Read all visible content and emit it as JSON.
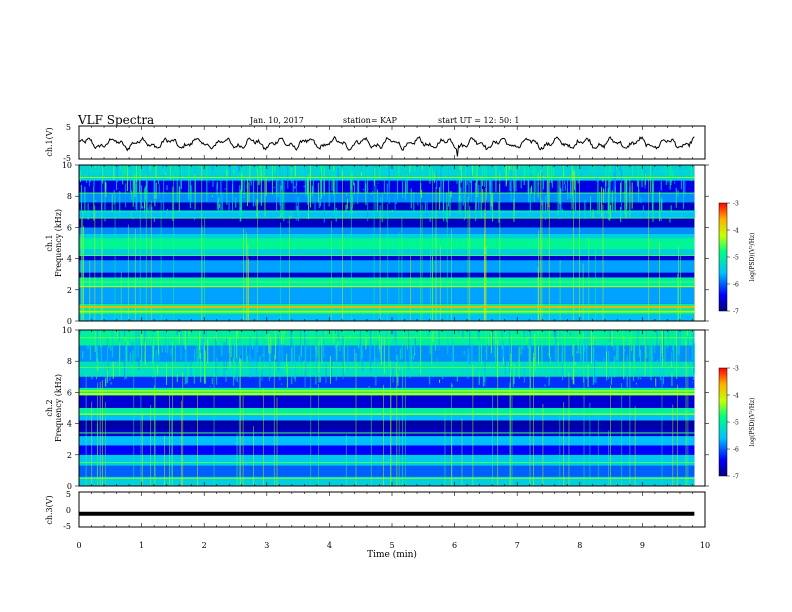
{
  "header": {
    "title": "VLF Spectra",
    "date": "Jan. 10, 2017",
    "station": "station= KAP",
    "start_ut": "start  UT =   12: 50: 1"
  },
  "chart_data": [
    {
      "type": "line",
      "ylabel": "ch.1(V)",
      "ylim": [
        -5,
        5
      ],
      "yticks": [
        "5",
        "-5"
      ],
      "xlim": [
        0,
        10
      ],
      "description_values": "waveform oscillating around -0.3 V with amplitude about 1.5 V"
    },
    {
      "type": "heatmap",
      "ylabel_top": "ch.1",
      "ylabel": "Frequency (kHz)",
      "ylim": [
        0,
        10
      ],
      "yticks": [
        "0",
        "2",
        "4",
        "6",
        "8",
        "10"
      ],
      "xlim": [
        0,
        10
      ],
      "colorbar": {
        "label": "log(PSD)(V²/Hz)",
        "range": [
          -7,
          -3
        ],
        "ticks": [
          "-3",
          "-4",
          "-5",
          "-6",
          "-7"
        ]
      }
    },
    {
      "type": "heatmap",
      "ylabel_top": "ch.2",
      "ylabel": "Frequency (kHz)",
      "ylim": [
        0,
        10
      ],
      "yticks": [
        "0",
        "2",
        "4",
        "6",
        "8",
        "10"
      ],
      "xlim": [
        0,
        10
      ],
      "colorbar": {
        "label": "log(PSD)(V²/Hz)",
        "range": [
          -7,
          -3
        ],
        "ticks": [
          "-3",
          "-4",
          "-5",
          "-6",
          "-7"
        ]
      }
    },
    {
      "type": "line",
      "ylabel": "ch.3(V)",
      "ylim": [
        -5,
        5
      ],
      "yticks": [
        "5",
        "0",
        "-5"
      ],
      "xlim": [
        0,
        10
      ],
      "xlabel": "Time (min)",
      "xticks": [
        "0",
        "1",
        "2",
        "3",
        "4",
        "5",
        "6",
        "7",
        "8",
        "9",
        "10"
      ],
      "constant_value": -1.2
    }
  ],
  "colors": {
    "trace": "#000000",
    "colormap": [
      "#00007f",
      "#0000ff",
      "#00bfff",
      "#00ff80",
      "#c8ff00",
      "#ffb000",
      "#ff0000"
    ]
  }
}
